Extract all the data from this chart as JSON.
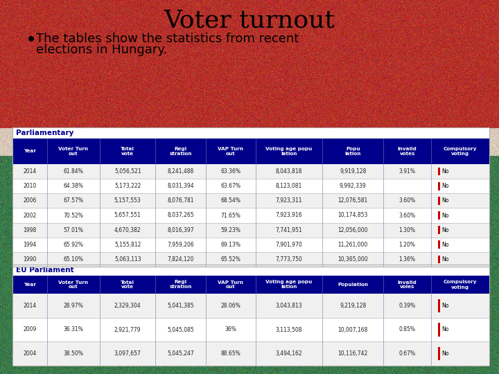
{
  "title": "Voter turnout",
  "subtitle_bullet": "•",
  "subtitle_line1": "The tables show the statistics from recent",
  "subtitle_line2": "elections in Hungary.",
  "header_bg": "#00008B",
  "header_fg": "#ffffff",
  "section_label_color": "#00008B",
  "parl_label": "Parliamentary",
  "eu_label": "EU Parliament",
  "parl_columns": [
    "Year",
    "Voter Turn\nout",
    "Total\nvote",
    "Regi\nstration",
    "VAP Turn\nout",
    "Voting age popu\nlation",
    "Popu\nlation",
    "Invalid\nvotes",
    "Compulsory\nvoting"
  ],
  "parl_data": [
    [
      "2014",
      "61.84%",
      "5,056,521",
      "8,241,488",
      "63.36%",
      "8,043,818",
      "9,919,128",
      "3.91%",
      "No"
    ],
    [
      "2010",
      "64.38%",
      "5,173,222",
      "8,031,394",
      "63.67%",
      "8,123,081",
      "9,992,339",
      "",
      "No"
    ],
    [
      "2006",
      "67.57%",
      "5,157,553",
      "8,076,781",
      "68.54%",
      "7,923,311",
      "12,076,581",
      "3.60%",
      "No"
    ],
    [
      "2002",
      "70.52%",
      "5,657,551",
      "8,037,265",
      "71.65%",
      "7,923,916",
      "10,174,853",
      "3.60%",
      "No"
    ],
    [
      "1998",
      "57.01%",
      "4,670,382",
      "8,016,397",
      "59.23%",
      "7,741,951",
      "12,056,000",
      "1.30%",
      "No"
    ],
    [
      "1994",
      "65.92%",
      "5,155,812",
      "7,959,206",
      "69.13%",
      "7,901,970",
      "11,261,000",
      "1.20%",
      "No"
    ],
    [
      "1990",
      "65.10%",
      "5,063,113",
      "7,824,120",
      "65.52%",
      "7,773,750",
      "10,365,000",
      "1.36%",
      "No"
    ]
  ],
  "eu_columns": [
    "Year",
    "Voter Turn\nout",
    "Total\nvote",
    "Regi\nstration",
    "VAP Turn\nout",
    "Voting age popu\nlation",
    "Population",
    "Invalid\nvoles",
    "Compulsory\nvoting"
  ],
  "eu_data": [
    [
      "2014",
      "28.97%",
      "2,329,304",
      "5,041,385",
      "28.06%",
      "3,043,813",
      "9,219,128",
      "0.39%",
      "No"
    ],
    [
      "2009",
      "36.31%",
      "2,921,779",
      "5,045,085",
      "36%",
      "3,113,508",
      "10,007,168",
      "0.85%",
      "No"
    ],
    [
      "2004",
      "38.50%",
      "3,097,657",
      "5,045,247",
      "88.65%",
      "3,494,162",
      "10,116,742",
      "0.67%",
      "No"
    ]
  ],
  "col_weights": [
    0.62,
    0.95,
    1.0,
    0.9,
    0.9,
    1.2,
    1.1,
    0.85,
    1.05
  ],
  "bg_red": "#b5312a",
  "bg_white": "#d8c8b8",
  "bg_green": "#3a7a4a",
  "table_border": "#bbbbbb",
  "row_even": "#f0f0f0",
  "row_odd": "#ffffff",
  "red_bar_color": "#cc0000"
}
